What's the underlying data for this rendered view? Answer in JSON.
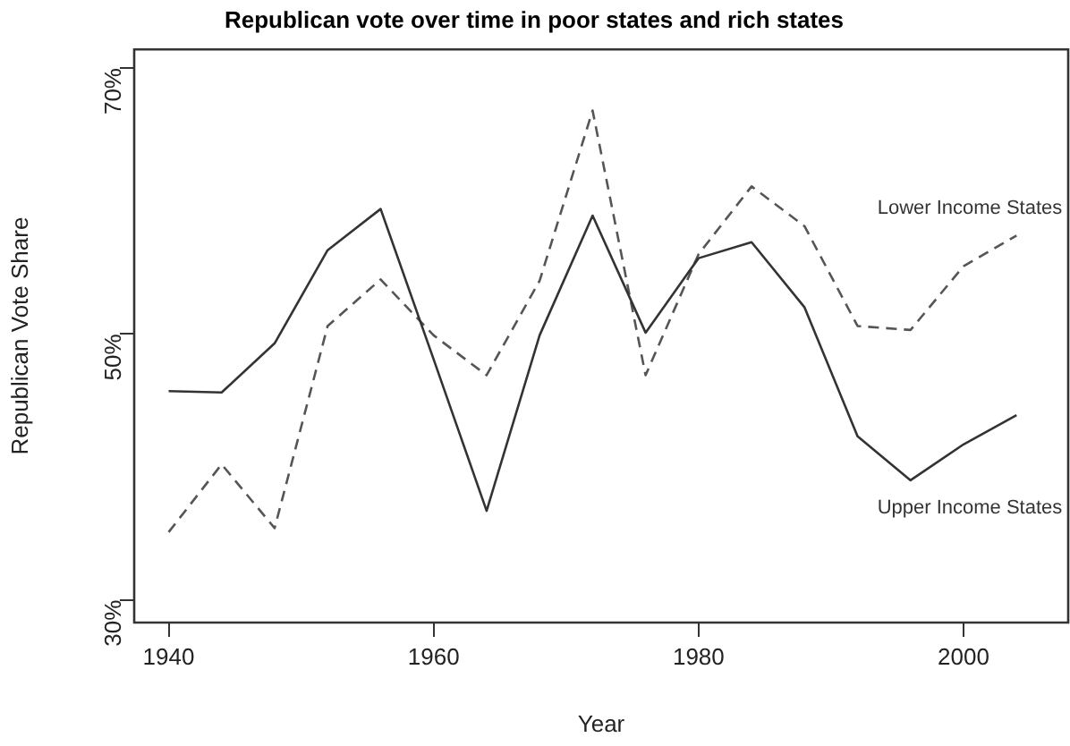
{
  "chart_data": {
    "type": "line",
    "title": "Republican vote over time in poor states and rich states",
    "xlabel": "Year",
    "ylabel": "Republican Vote Share",
    "x": [
      1940,
      1944,
      1948,
      1952,
      1956,
      1960,
      1964,
      1968,
      1972,
      1976,
      1980,
      1984,
      1988,
      1992,
      1996,
      2000,
      2004
    ],
    "series": [
      {
        "name": "Upper Income States",
        "color": "#333333",
        "line_style": "solid",
        "values": [
          45.7,
          45.6,
          49.3,
          56.3,
          59.4,
          48.1,
          36.7,
          49.9,
          58.9,
          50.1,
          55.7,
          56.9,
          52.0,
          42.3,
          39.0,
          41.7,
          43.9
        ]
      },
      {
        "name": "Lower Income States",
        "color": "#555555",
        "line_style": "dashed",
        "values": [
          35.1,
          40.2,
          35.4,
          50.6,
          54.1,
          49.9,
          46.9,
          54.0,
          66.8,
          46.9,
          56.0,
          61.1,
          58.1,
          50.6,
          50.3,
          55.1,
          57.4
        ]
      }
    ],
    "xlim": [
      1937.4,
      2007.9
    ],
    "xticks": [
      1940,
      1960,
      1980,
      2000
    ],
    "ylim": [
      28.3,
      71.4
    ],
    "yticks": [
      {
        "value": 30,
        "label": "30%"
      },
      {
        "value": 50,
        "label": "50%"
      },
      {
        "value": 70,
        "label": "70%"
      }
    ],
    "legend": false,
    "grid": false,
    "marker": "none"
  }
}
